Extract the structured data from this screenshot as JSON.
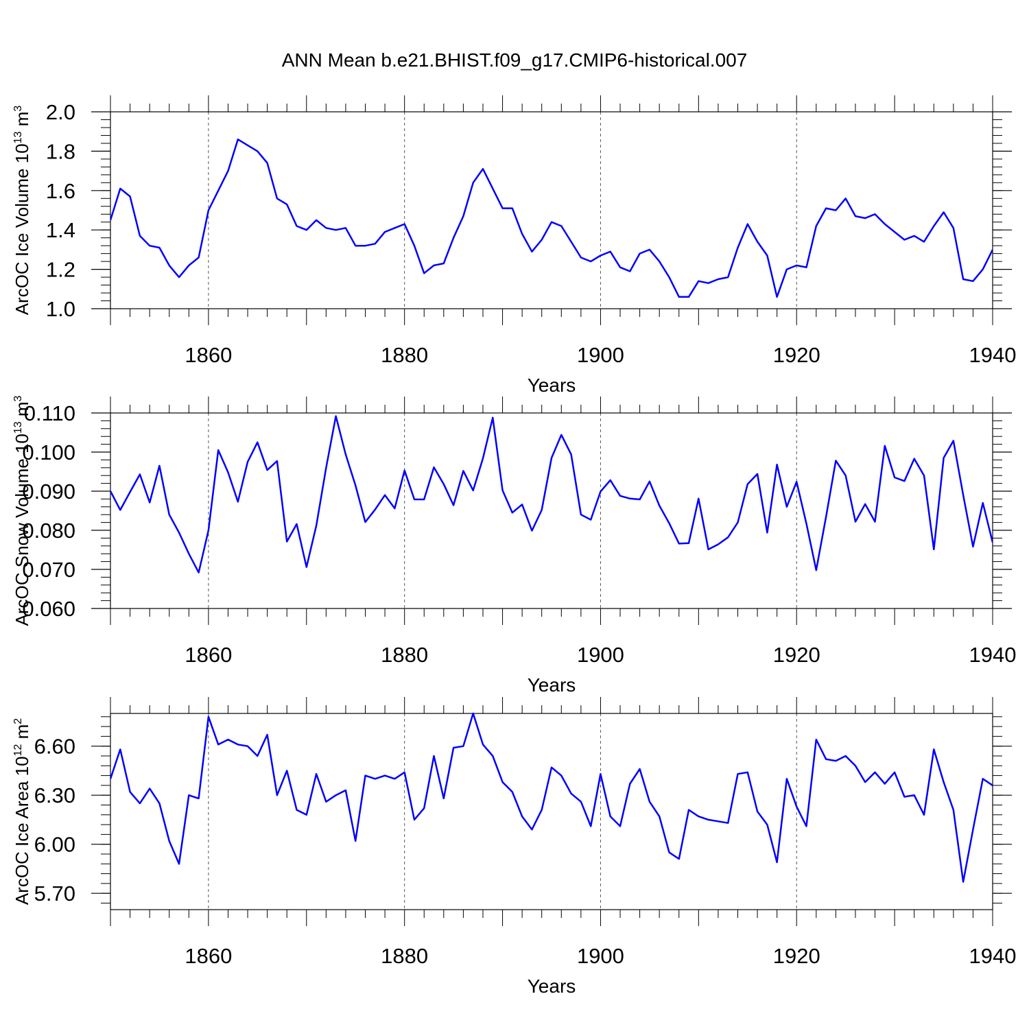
{
  "title": "ANN Mean b.e21.BHIST.f09_g17.CMIP6-historical.007",
  "chart_data": [
    {
      "type": "line",
      "ylabel": "ArcOC Ice Volume 10",
      "ylabel_sup": "13",
      "ylabel_unit": " m",
      "ylabel_unit_sup": "3",
      "xlabel": "Years",
      "xlim": [
        1850,
        1940
      ],
      "ylim": [
        1.0,
        2.0
      ],
      "yticks": [
        1.0,
        1.2,
        1.4,
        1.6,
        1.8,
        2.0
      ],
      "ytick_labels": [
        "1.0",
        "1.2",
        "1.4",
        "1.6",
        "1.8",
        "2.0"
      ],
      "xticks": [
        1860,
        1880,
        1900,
        1920,
        1940
      ],
      "xtick_labels": [
        "1860",
        "1880",
        "1900",
        "1920",
        "1940"
      ],
      "grid": "dashed vertical at major x ticks",
      "line_color": "#0000ff",
      "x_start": 1850,
      "values": [
        1.45,
        1.61,
        1.57,
        1.37,
        1.32,
        1.31,
        1.22,
        1.16,
        1.22,
        1.26,
        1.5,
        1.6,
        1.7,
        1.86,
        1.83,
        1.8,
        1.74,
        1.56,
        1.53,
        1.42,
        1.4,
        1.45,
        1.41,
        1.4,
        1.41,
        1.32,
        1.32,
        1.33,
        1.39,
        1.41,
        1.43,
        1.32,
        1.18,
        1.22,
        1.23,
        1.36,
        1.47,
        1.64,
        1.71,
        1.61,
        1.51,
        1.51,
        1.38,
        1.29,
        1.35,
        1.44,
        1.42,
        1.34,
        1.26,
        1.24,
        1.27,
        1.29,
        1.21,
        1.19,
        1.28,
        1.3,
        1.24,
        1.16,
        1.06,
        1.06,
        1.14,
        1.13,
        1.15,
        1.16,
        1.31,
        1.43,
        1.34,
        1.27,
        1.06,
        1.2,
        1.22,
        1.21,
        1.42,
        1.51,
        1.5,
        1.56,
        1.47,
        1.46,
        1.48,
        1.43,
        1.39,
        1.35,
        1.37,
        1.34,
        1.42,
        1.49,
        1.41,
        1.15,
        1.14,
        1.2,
        1.3
      ]
    },
    {
      "type": "line",
      "ylabel": "ArcOC Snow Volume 10",
      "ylabel_sup": "13",
      "ylabel_unit": " m",
      "ylabel_unit_sup": "3",
      "xlabel": "Years",
      "xlim": [
        1850,
        1940
      ],
      "ylim": [
        0.06,
        0.11
      ],
      "yticks": [
        0.06,
        0.07,
        0.08,
        0.09,
        0.1,
        0.11
      ],
      "ytick_labels": [
        "0.060",
        "0.070",
        "0.080",
        "0.090",
        "0.100",
        "0.110"
      ],
      "xticks": [
        1860,
        1880,
        1900,
        1920,
        1940
      ],
      "xtick_labels": [
        "1860",
        "1880",
        "1900",
        "1920",
        "1940"
      ],
      "grid": "dashed vertical at major x ticks",
      "line_color": "#0000ff",
      "x_start": 1850,
      "values": [
        0.09,
        0.0852,
        0.0898,
        0.0943,
        0.0871,
        0.0965,
        0.084,
        0.0794,
        0.074,
        0.0692,
        0.08,
        0.1005,
        0.0948,
        0.0873,
        0.0975,
        0.1025,
        0.0954,
        0.0977,
        0.0771,
        0.0816,
        0.0706,
        0.0812,
        0.096,
        0.1092,
        0.0994,
        0.0915,
        0.0821,
        0.0853,
        0.089,
        0.0856,
        0.0953,
        0.0879,
        0.0879,
        0.0961,
        0.0918,
        0.0864,
        0.0952,
        0.0902,
        0.0984,
        0.1088,
        0.0902,
        0.0845,
        0.0866,
        0.0799,
        0.0852,
        0.0985,
        0.1044,
        0.0994,
        0.084,
        0.0827,
        0.0899,
        0.0928,
        0.0888,
        0.0881,
        0.0879,
        0.0925,
        0.0863,
        0.0818,
        0.0766,
        0.0767,
        0.0881,
        0.0751,
        0.0764,
        0.0782,
        0.082,
        0.0918,
        0.0944,
        0.0794,
        0.0968,
        0.086,
        0.0924,
        0.0817,
        0.0698,
        0.0834,
        0.0978,
        0.094,
        0.0822,
        0.0867,
        0.0822,
        0.1016,
        0.0935,
        0.0926,
        0.0983,
        0.094,
        0.0751,
        0.0985,
        0.1029,
        0.089,
        0.0758,
        0.087,
        0.0769
      ]
    },
    {
      "type": "line",
      "ylabel": "ArcOC Ice Area 10",
      "ylabel_sup": "12",
      "ylabel_unit": " m",
      "ylabel_unit_sup": "2",
      "xlabel": "Years",
      "xlim": [
        1850,
        1940
      ],
      "ylim": [
        5.6,
        6.8
      ],
      "yticks": [
        5.7,
        6.0,
        6.3,
        6.6
      ],
      "ytick_labels": [
        "5.70",
        "6.00",
        "6.30",
        "6.60"
      ],
      "xticks": [
        1860,
        1880,
        1900,
        1920,
        1940
      ],
      "xtick_labels": [
        "1860",
        "1880",
        "1900",
        "1920",
        "1940"
      ],
      "grid": "dashed vertical at major x ticks",
      "line_color": "#0000ff",
      "x_start": 1850,
      "values": [
        6.4,
        6.58,
        6.32,
        6.25,
        6.34,
        6.25,
        6.02,
        5.88,
        6.3,
        6.28,
        6.78,
        6.61,
        6.64,
        6.61,
        6.6,
        6.54,
        6.67,
        6.3,
        6.45,
        6.21,
        6.18,
        6.43,
        6.26,
        6.3,
        6.33,
        6.02,
        6.42,
        6.4,
        6.42,
        6.4,
        6.44,
        6.15,
        6.22,
        6.54,
        6.28,
        6.59,
        6.6,
        6.8,
        6.61,
        6.54,
        6.38,
        6.32,
        6.17,
        6.09,
        6.21,
        6.47,
        6.42,
        6.31,
        6.26,
        6.11,
        6.43,
        6.17,
        6.11,
        6.37,
        6.46,
        6.26,
        6.17,
        5.95,
        5.91,
        6.21,
        6.17,
        6.15,
        6.14,
        6.13,
        6.43,
        6.44,
        6.2,
        6.12,
        5.89,
        6.4,
        6.23,
        6.11,
        6.64,
        6.52,
        6.51,
        6.54,
        6.48,
        6.38,
        6.44,
        6.37,
        6.44,
        6.29,
        6.3,
        6.18,
        6.58,
        6.38,
        6.21,
        5.77,
        6.09,
        6.4,
        6.36
      ]
    }
  ]
}
